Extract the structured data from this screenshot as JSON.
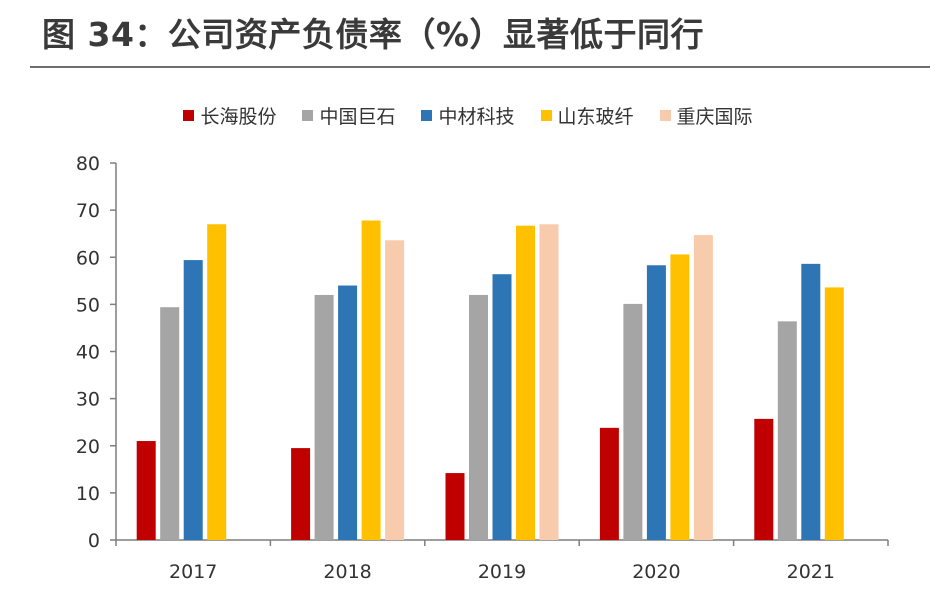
{
  "title": "图 34：公司资产负债率（%）显著低于同行",
  "chart_data": {
    "type": "bar",
    "title": "",
    "xlabel": "",
    "ylabel": "",
    "ylim": [
      0,
      80
    ],
    "yticks": [
      0,
      10,
      20,
      30,
      40,
      50,
      60,
      70,
      80
    ],
    "grid": false,
    "legend_position": "top-center",
    "categories": [
      "2017",
      "2018",
      "2019",
      "2020",
      "2021"
    ],
    "series": [
      {
        "name": "长海股份",
        "color": "#c00000",
        "values": [
          21,
          19.5,
          14.2,
          23.8,
          25.7
        ]
      },
      {
        "name": "中国巨石",
        "color": "#a5a5a5",
        "values": [
          49.4,
          52,
          52,
          50.1,
          46.4
        ]
      },
      {
        "name": "中材科技",
        "color": "#2e75b6",
        "values": [
          59.4,
          54,
          56.4,
          58.3,
          58.6
        ]
      },
      {
        "name": "山东玻纤",
        "color": "#ffc000",
        "values": [
          67,
          67.8,
          66.7,
          60.6,
          53.6
        ]
      },
      {
        "name": "重庆国际",
        "color": "#f8cbad",
        "values": [
          null,
          63.6,
          67,
          64.7,
          null
        ]
      }
    ]
  }
}
